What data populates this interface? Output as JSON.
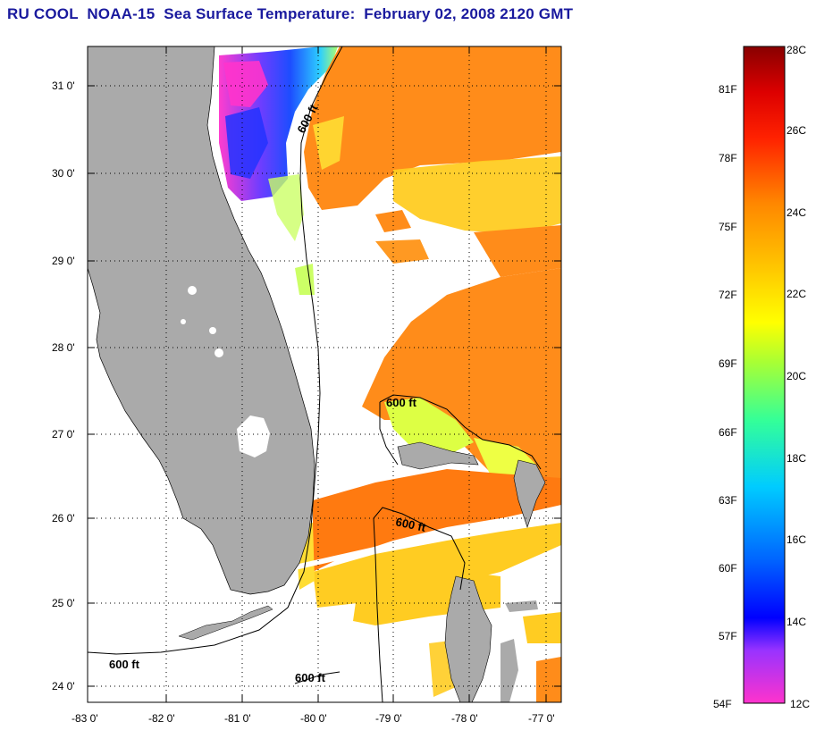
{
  "title": "RU COOL  NOAA-15  Sea Surface Temperature:  February 02, 2008 2120 GMT",
  "axes": {
    "lat_labels": [
      "31 0'",
      "30 0'",
      "29 0'",
      "28 0'",
      "27 0'",
      "26 0'",
      "25 0'",
      "24 0'"
    ],
    "lon_labels": [
      "-83 0'",
      "-82 0'",
      "-81 0'",
      "-80 0'",
      "-79 0'",
      "-78 0'",
      "-77 0'"
    ]
  },
  "contour_labels": [
    "600 ft",
    "600 ft",
    "600 ft",
    "600 ft",
    "600 ft"
  ],
  "colorbar": {
    "fahrenheit_labels": [
      "81F",
      "78F",
      "75F",
      "72F",
      "69F",
      "66F",
      "63F",
      "60F",
      "57F",
      "54F"
    ],
    "celsius_labels": [
      "28C",
      "26C",
      "24C",
      "22C",
      "20C",
      "18C",
      "16C",
      "14C",
      "12C"
    ],
    "colors": [
      "#ff33cc",
      "#9933ff",
      "#0000ff",
      "#0099ff",
      "#00ffff",
      "#33ff99",
      "#ccff33",
      "#ffff00",
      "#ffcc00",
      "#ff9900",
      "#ff6600",
      "#ff0000",
      "#990000"
    ]
  },
  "colors": {
    "land": "#aaaaaa",
    "title": "#1a1a9e",
    "sst_warm": "#ff8c1a",
    "sst_yellow": "#ffee22",
    "sst_cold_blue": "#2244ff",
    "sst_cold_magenta": "#ff33cc"
  }
}
